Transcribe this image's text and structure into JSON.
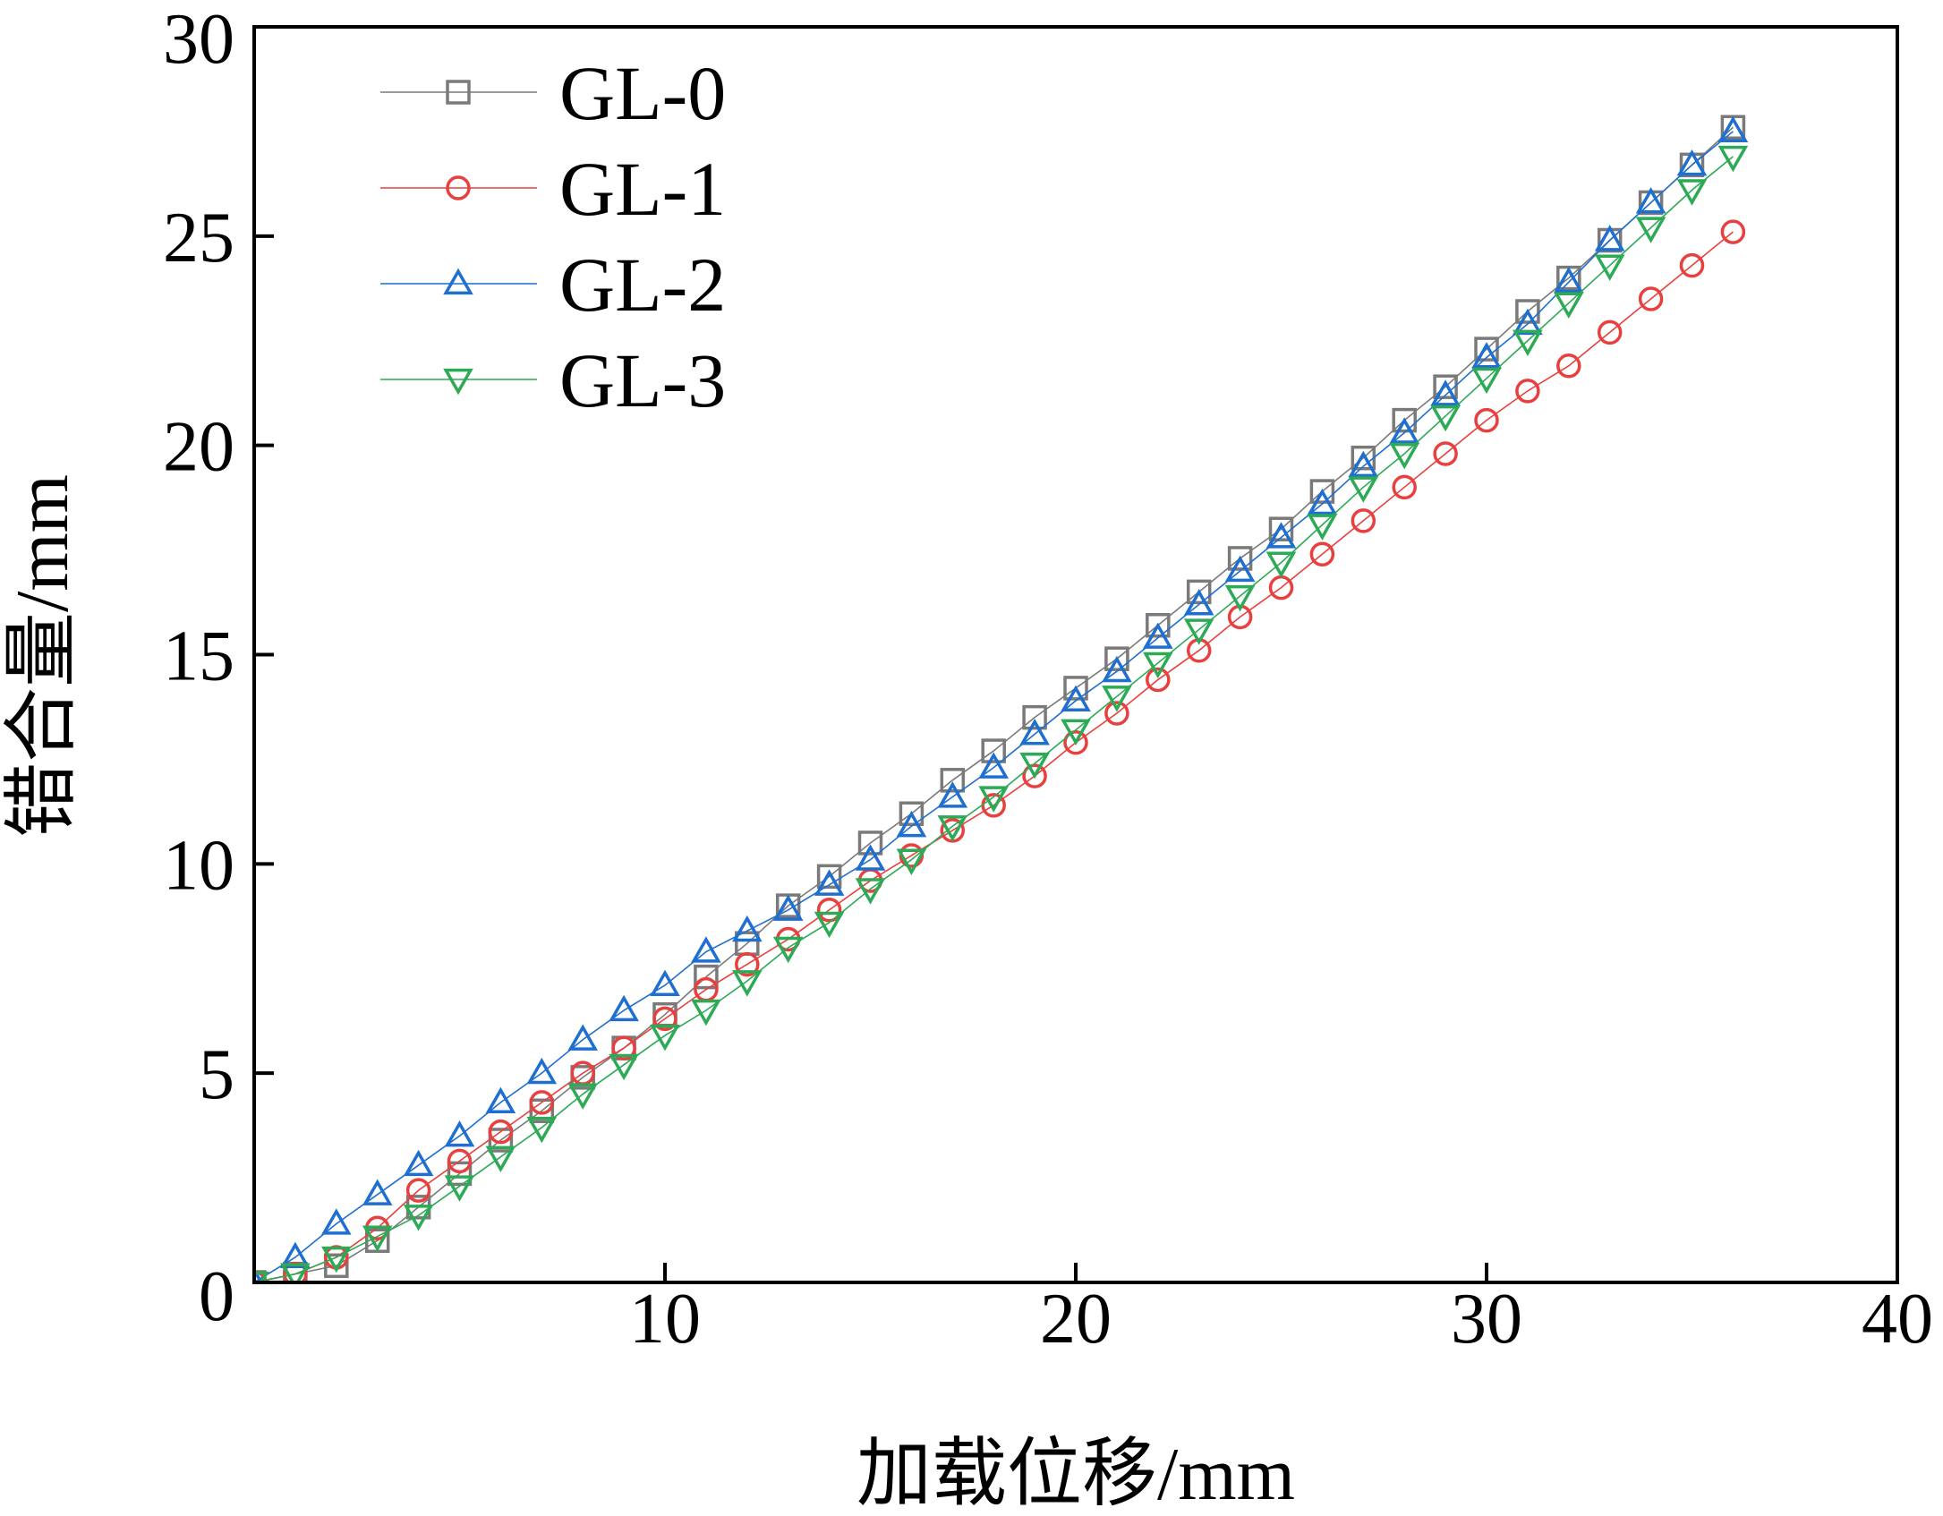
{
  "chart_data": {
    "type": "line",
    "title": "",
    "xlabel": "加载位移/mm",
    "ylabel": "错合量/mm",
    "xlim": [
      0,
      40
    ],
    "ylim": [
      0,
      30
    ],
    "xticks": [
      "10",
      "20",
      "30",
      "40"
    ],
    "yticks": [
      "0",
      "5",
      "10",
      "15",
      "20",
      "25",
      "30"
    ],
    "grid": false,
    "legend_position": "top-left",
    "x": [
      0,
      1,
      2,
      3,
      4,
      5,
      6,
      7,
      8,
      9,
      10,
      11,
      12,
      13,
      14,
      15,
      16,
      17,
      18,
      19,
      20,
      21,
      22,
      23,
      24,
      25,
      26,
      27,
      28,
      29,
      30,
      31,
      32,
      33,
      34,
      35,
      36
    ],
    "series": [
      {
        "name": "GL-0",
        "color": "#7a7a7a",
        "marker": "square",
        "values": [
          0,
          0.2,
          0.4,
          1.0,
          1.8,
          2.6,
          3.4,
          4.1,
          4.9,
          5.6,
          6.4,
          7.3,
          8.1,
          9.0,
          9.7,
          10.5,
          11.2,
          12.0,
          12.7,
          13.5,
          14.2,
          14.9,
          15.7,
          16.5,
          17.3,
          18.0,
          18.9,
          19.7,
          20.6,
          21.4,
          22.3,
          23.2,
          24.0,
          24.9,
          25.8,
          26.7,
          27.6
        ]
      },
      {
        "name": "GL-1",
        "color": "#e8403f",
        "marker": "circle",
        "values": [
          0,
          0.2,
          0.6,
          1.3,
          2.2,
          2.9,
          3.6,
          4.3,
          5.0,
          5.6,
          6.3,
          7.0,
          7.6,
          8.2,
          8.9,
          9.6,
          10.2,
          10.8,
          11.4,
          12.1,
          12.9,
          13.6,
          14.4,
          15.1,
          15.9,
          16.6,
          17.4,
          18.2,
          19.0,
          19.8,
          20.6,
          21.3,
          21.9,
          22.7,
          23.5,
          24.3,
          25.1
        ]
      },
      {
        "name": "GL-2",
        "color": "#1f6fd0",
        "marker": "triangle-up",
        "values": [
          0,
          0.6,
          1.4,
          2.1,
          2.8,
          3.5,
          4.3,
          5.0,
          5.8,
          6.5,
          7.1,
          7.9,
          8.4,
          8.9,
          9.5,
          10.1,
          10.9,
          11.6,
          12.3,
          13.1,
          13.9,
          14.6,
          15.4,
          16.2,
          17.0,
          17.8,
          18.6,
          19.5,
          20.3,
          21.2,
          22.1,
          22.9,
          23.9,
          24.9,
          25.8,
          26.7,
          27.5
        ]
      },
      {
        "name": "GL-3",
        "color": "#2daa55",
        "marker": "triangle-down",
        "values": [
          0,
          0.2,
          0.6,
          1.1,
          1.6,
          2.3,
          3.0,
          3.7,
          4.5,
          5.2,
          5.9,
          6.5,
          7.2,
          8.0,
          8.6,
          9.4,
          10.1,
          10.9,
          11.6,
          12.4,
          13.2,
          14.0,
          14.8,
          15.6,
          16.4,
          17.2,
          18.1,
          19.0,
          19.8,
          20.7,
          21.6,
          22.5,
          23.4,
          24.3,
          25.2,
          26.1,
          26.9
        ]
      }
    ]
  }
}
